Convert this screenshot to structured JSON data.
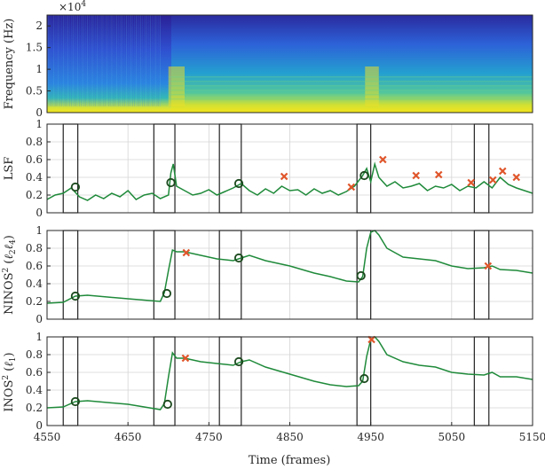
{
  "chart_data": [
    {
      "type": "heatmap",
      "ylabel": "Frequency (Hz)",
      "y_exponent": "×10",
      "y_exponent_power": "4",
      "yticks": [
        "0",
        "0.5",
        "1",
        "1.5",
        "2"
      ],
      "ylim": [
        0,
        2.25
      ],
      "xlim": [
        4550,
        5150
      ],
      "colormap": [
        "#3a1e8a",
        "#2d5fd8",
        "#1fa0c8",
        "#4fc79c",
        "#c8e03a",
        "#f5e31c"
      ],
      "energy_profile": [
        {
          "x": 4550,
          "low": 0.55
        },
        {
          "x": 4690,
          "low": 0.55
        },
        {
          "x": 4700,
          "low": 0.85
        },
        {
          "x": 4760,
          "low": 0.75
        },
        {
          "x": 4940,
          "low": 0.7
        },
        {
          "x": 4950,
          "low": 0.9
        },
        {
          "x": 5000,
          "low": 0.75
        },
        {
          "x": 5150,
          "low": 0.65
        }
      ],
      "onsets_x": [
        4700,
        4945
      ]
    },
    {
      "type": "line",
      "ylabel": "LSF",
      "ylim": [
        0,
        1
      ],
      "yticks": [
        "0",
        "0.2",
        "0.4",
        "0.6",
        "0.8",
        "1"
      ],
      "series_color": "#1f8a3a",
      "series": [
        {
          "x": [
            4550,
            4560,
            4570,
            4580,
            4590,
            4600,
            4610,
            4620,
            4630,
            4640,
            4650,
            4660,
            4670,
            4680,
            4690,
            4700,
            4703,
            4706,
            4710,
            4720,
            4730,
            4740,
            4750,
            4760,
            4770,
            4780,
            4790,
            4800,
            4810,
            4820,
            4830,
            4840,
            4850,
            4860,
            4870,
            4880,
            4890,
            4900,
            4910,
            4920,
            4930,
            4940,
            4945,
            4950,
            4955,
            4960,
            4970,
            4980,
            4990,
            5000,
            5010,
            5020,
            5030,
            5040,
            5050,
            5060,
            5070,
            5080,
            5090,
            5100,
            5110,
            5120,
            5130,
            5140,
            5150
          ],
          "y": [
            0.15,
            0.2,
            0.22,
            0.28,
            0.18,
            0.14,
            0.2,
            0.16,
            0.22,
            0.18,
            0.25,
            0.15,
            0.2,
            0.22,
            0.16,
            0.2,
            0.45,
            0.55,
            0.3,
            0.25,
            0.2,
            0.22,
            0.26,
            0.2,
            0.24,
            0.28,
            0.33,
            0.25,
            0.2,
            0.27,
            0.22,
            0.3,
            0.25,
            0.26,
            0.2,
            0.27,
            0.22,
            0.25,
            0.2,
            0.24,
            0.3,
            0.42,
            0.5,
            0.35,
            0.55,
            0.4,
            0.3,
            0.35,
            0.28,
            0.3,
            0.33,
            0.25,
            0.3,
            0.28,
            0.32,
            0.25,
            0.3,
            0.28,
            0.35,
            0.28,
            0.4,
            0.32,
            0.28,
            0.25,
            0.22
          ]
        }
      ],
      "circles": [
        {
          "x": 4585,
          "y": 0.29
        },
        {
          "x": 4703,
          "y": 0.34
        },
        {
          "x": 4787,
          "y": 0.33
        },
        {
          "x": 4942,
          "y": 0.42
        }
      ],
      "crosses": [
        {
          "x": 4843,
          "y": 0.41
        },
        {
          "x": 4926,
          "y": 0.29
        },
        {
          "x": 4965,
          "y": 0.6
        },
        {
          "x": 5006,
          "y": 0.42
        },
        {
          "x": 5034,
          "y": 0.43
        },
        {
          "x": 5074,
          "y": 0.34
        },
        {
          "x": 5101,
          "y": 0.37
        },
        {
          "x": 5113,
          "y": 0.47
        },
        {
          "x": 5130,
          "y": 0.4
        }
      ]
    },
    {
      "type": "line",
      "ylabel": "NINOS",
      "ylabel_sup": "2",
      "ylabel_paren_open": " (",
      "ylabel_paren_close": ")",
      "ylabel_l1": "ℓ",
      "ylabel_l1_sub": "2",
      "ylabel_l2": "ℓ",
      "ylabel_l2_sub": "4",
      "ylim": [
        0,
        1
      ],
      "yticks": [
        "0",
        "0.2",
        "0.4",
        "0.6",
        "0.8",
        "1"
      ],
      "series_color": "#1f8a3a",
      "series": [
        {
          "x": [
            4550,
            4570,
            4585,
            4600,
            4650,
            4690,
            4695,
            4700,
            4705,
            4710,
            4720,
            4740,
            4760,
            4780,
            4790,
            4800,
            4820,
            4850,
            4880,
            4900,
            4920,
            4935,
            4940,
            4945,
            4950,
            4955,
            4960,
            4970,
            4990,
            5010,
            5030,
            5050,
            5070,
            5090,
            5100,
            5110,
            5130,
            5150
          ],
          "y": [
            0.18,
            0.19,
            0.26,
            0.27,
            0.23,
            0.2,
            0.3,
            0.55,
            0.78,
            0.76,
            0.76,
            0.72,
            0.68,
            0.66,
            0.69,
            0.72,
            0.66,
            0.6,
            0.52,
            0.48,
            0.43,
            0.42,
            0.48,
            0.8,
            0.98,
            1.0,
            0.95,
            0.8,
            0.7,
            0.68,
            0.66,
            0.6,
            0.57,
            0.58,
            0.6,
            0.56,
            0.55,
            0.52
          ]
        }
      ],
      "circles": [
        {
          "x": 4585,
          "y": 0.26
        },
        {
          "x": 4698,
          "y": 0.29
        },
        {
          "x": 4787,
          "y": 0.69
        },
        {
          "x": 4938,
          "y": 0.49
        }
      ],
      "crosses": [
        {
          "x": 4722,
          "y": 0.75
        },
        {
          "x": 5095,
          "y": 0.6
        }
      ]
    },
    {
      "type": "line",
      "ylabel": "INOS",
      "ylabel_sup": "2",
      "ylabel_paren_open": " (",
      "ylabel_paren_close": ")",
      "ylabel_l1": "ℓ",
      "ylabel_l1_sub": "1",
      "ylim": [
        0,
        1
      ],
      "yticks": [
        "0",
        "0.2",
        "0.4",
        "0.6",
        "0.8",
        "1"
      ],
      "xlabel": "Time (frames)",
      "xticks": [
        "4550",
        "4650",
        "4750",
        "4850",
        "4950",
        "5050",
        "5150"
      ],
      "series_color": "#1f8a3a",
      "series": [
        {
          "x": [
            4550,
            4570,
            4585,
            4600,
            4650,
            4690,
            4695,
            4700,
            4705,
            4710,
            4720,
            4740,
            4760,
            4780,
            4790,
            4800,
            4820,
            4850,
            4880,
            4900,
            4920,
            4935,
            4940,
            4945,
            4950,
            4955,
            4960,
            4970,
            4990,
            5010,
            5030,
            5050,
            5070,
            5090,
            5100,
            5110,
            5130,
            5150
          ],
          "y": [
            0.2,
            0.21,
            0.27,
            0.28,
            0.24,
            0.18,
            0.25,
            0.55,
            0.82,
            0.76,
            0.76,
            0.72,
            0.7,
            0.68,
            0.72,
            0.74,
            0.66,
            0.58,
            0.5,
            0.46,
            0.44,
            0.45,
            0.5,
            0.78,
            0.97,
            1.0,
            0.95,
            0.8,
            0.72,
            0.68,
            0.66,
            0.6,
            0.58,
            0.57,
            0.6,
            0.55,
            0.55,
            0.52
          ]
        }
      ],
      "circles": [
        {
          "x": 4585,
          "y": 0.27
        },
        {
          "x": 4699,
          "y": 0.24
        },
        {
          "x": 4787,
          "y": 0.72
        },
        {
          "x": 4942,
          "y": 0.53
        }
      ],
      "crosses": [
        {
          "x": 4721,
          "y": 0.76
        },
        {
          "x": 4951,
          "y": 0.97
        }
      ]
    }
  ],
  "onset_windows": [
    [
      4570,
      4588
    ],
    [
      4682,
      4708
    ],
    [
      4763,
      4790
    ],
    [
      4933,
      4950
    ],
    [
      5078,
      5096
    ]
  ],
  "grid": true,
  "colors": {
    "line": "#1f8a3a",
    "circle": "#1c4a1e",
    "cross": "#e0552a",
    "window": "#222222",
    "grid": "#d4d4d4"
  }
}
